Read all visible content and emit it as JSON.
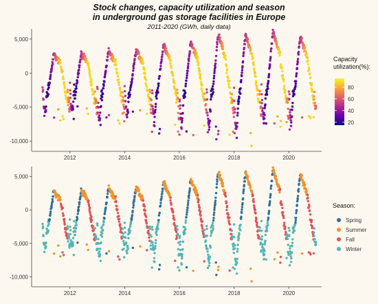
{
  "title_lines": [
    "Stock changes, capacity utilization and season",
    "in underground gas storage facilities in Europe"
  ],
  "subtitle": "2011-2020 (GWh, daily data)",
  "chart_data": [
    {
      "type": "scatter",
      "panel": "top",
      "color_by": "capacity utilization",
      "x_ticks": [
        "2012",
        "2014",
        "2016",
        "2018",
        "2020"
      ],
      "x_tick_values": [
        2012,
        2014,
        2016,
        2018,
        2020
      ],
      "xlim": [
        2010.6,
        2021.2
      ],
      "y_ticks": [
        "5,000",
        "0",
        "-5,000",
        "-10,000"
      ],
      "y_tick_values": [
        5000,
        0,
        -5000,
        -10000
      ],
      "ylim": [
        -11500,
        6500
      ],
      "legend": {
        "title_lines": [
          "Capacity",
          "utilization(%):"
        ],
        "ticks": [
          "80",
          "60",
          "40",
          "20"
        ],
        "tick_values": [
          80,
          60,
          40,
          20
        ],
        "range": [
          15,
          95
        ],
        "placement": "right",
        "colors": [
          "#0d0887",
          "#6a00a8",
          "#b12a90",
          "#e16462",
          "#fca636",
          "#f0f921"
        ]
      },
      "yearly_peak_injection": [
        2800,
        2900,
        3400,
        3300,
        4100,
        4500,
        5700,
        5600,
        6200,
        5300
      ],
      "yearly_min_withdrawal": [
        -7300,
        -6800,
        -8200,
        -7600,
        -9000,
        -9700,
        -10100,
        -11200,
        -8600,
        -8400
      ]
    },
    {
      "type": "scatter",
      "panel": "bottom",
      "color_by": "season",
      "x_ticks": [
        "2012",
        "2014",
        "2016",
        "2018",
        "2020"
      ],
      "x_tick_values": [
        2012,
        2014,
        2016,
        2018,
        2020
      ],
      "xlim": [
        2010.6,
        2021.2
      ],
      "y_ticks": [
        "5,000",
        "0",
        "-5,000",
        "-10,000"
      ],
      "y_tick_values": [
        5000,
        0,
        -5000,
        -10000
      ],
      "ylim": [
        -11500,
        6500
      ],
      "legend": {
        "title": "Season:",
        "placement": "right",
        "entries": [
          {
            "label": "Spring",
            "color": "#2e6f9e"
          },
          {
            "label": "Summer",
            "color": "#f0922e"
          },
          {
            "label": "Fall",
            "color": "#e0525a"
          },
          {
            "label": "Winter",
            "color": "#52b6b4"
          }
        ]
      },
      "yearly_peak_injection": [
        2800,
        2900,
        3400,
        3300,
        4100,
        4500,
        5700,
        5600,
        6200,
        5300
      ],
      "yearly_min_withdrawal": [
        -7300,
        -6800,
        -8200,
        -7600,
        -9000,
        -9700,
        -10100,
        -11200,
        -8600,
        -8400
      ]
    }
  ]
}
